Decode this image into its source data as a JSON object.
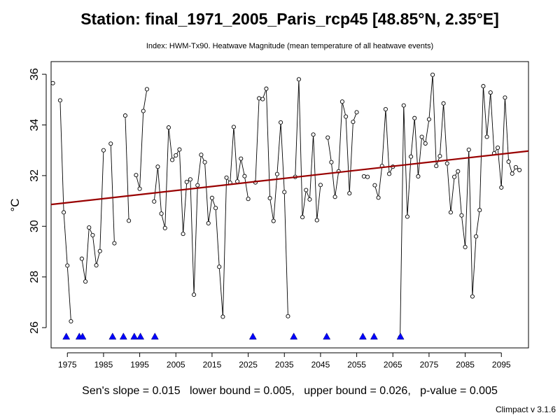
{
  "chart_data": {
    "type": "line",
    "title": "Station: final_1971_2005_Paris_rcp45 [48.85°N, 2.35°E]",
    "subtitle": "Index: HWM-Tx90. Heatwave Magnitude (mean temperature of all heatwave events)",
    "ylabel": "°C",
    "xlabel": "",
    "xlim": [
      1970.5,
      2102.5
    ],
    "ylim": [
      25.2,
      36.5
    ],
    "xticks": [
      1975,
      1985,
      1995,
      2005,
      2015,
      2025,
      2035,
      2045,
      2055,
      2065,
      2075,
      2085,
      2095
    ],
    "yticks": [
      26,
      28,
      30,
      32,
      34,
      36
    ],
    "grid": false,
    "legend": "none",
    "series": [
      {
        "values": [
          [
            1971,
            35.65
          ],
          [
            1972,
            null
          ],
          [
            1973,
            34.97
          ],
          [
            1974,
            30.55
          ],
          [
            1975,
            28.45
          ],
          [
            1976,
            26.25
          ],
          [
            1977,
            null
          ],
          [
            1978,
            null
          ],
          [
            1979,
            28.72
          ],
          [
            1980,
            27.82
          ],
          [
            1981,
            29.95
          ],
          [
            1982,
            29.65
          ],
          [
            1983,
            28.46
          ],
          [
            1984,
            29.02
          ],
          [
            1985,
            33.0
          ],
          [
            1986,
            null
          ],
          [
            1987,
            33.26
          ],
          [
            1988,
            29.33
          ],
          [
            1989,
            null
          ],
          [
            1990,
            null
          ],
          [
            1991,
            34.37
          ],
          [
            1992,
            30.22
          ],
          [
            1993,
            null
          ],
          [
            1994,
            32.02
          ],
          [
            1995,
            31.48
          ],
          [
            1996,
            34.55
          ],
          [
            1997,
            35.41
          ],
          [
            1998,
            null
          ],
          [
            1999,
            30.98
          ],
          [
            2000,
            32.35
          ],
          [
            2001,
            30.5
          ],
          [
            2002,
            29.93
          ],
          [
            2003,
            33.9
          ],
          [
            2004,
            32.62
          ],
          [
            2005,
            32.8
          ],
          [
            2006,
            33.03
          ],
          [
            2007,
            29.7
          ],
          [
            2008,
            31.75
          ],
          [
            2009,
            31.85
          ],
          [
            2010,
            27.3
          ],
          [
            2011,
            31.62
          ],
          [
            2012,
            32.82
          ],
          [
            2013,
            32.53
          ],
          [
            2014,
            30.12
          ],
          [
            2015,
            31.12
          ],
          [
            2016,
            30.72
          ],
          [
            2017,
            28.4
          ],
          [
            2018,
            26.43
          ],
          [
            2019,
            31.92
          ],
          [
            2020,
            31.72
          ],
          [
            2021,
            33.92
          ],
          [
            2022,
            31.77
          ],
          [
            2023,
            32.67
          ],
          [
            2024,
            31.98
          ],
          [
            2025,
            31.08
          ],
          [
            2026,
            null
          ],
          [
            2027,
            31.73
          ],
          [
            2028,
            35.05
          ],
          [
            2029,
            35.02
          ],
          [
            2030,
            35.43
          ],
          [
            2031,
            31.11
          ],
          [
            2032,
            30.21
          ],
          [
            2033,
            32.06
          ],
          [
            2034,
            34.1
          ],
          [
            2035,
            31.35
          ],
          [
            2036,
            26.45
          ],
          [
            2037,
            null
          ],
          [
            2038,
            31.95
          ],
          [
            2039,
            35.8
          ],
          [
            2040,
            30.36
          ],
          [
            2041,
            31.43
          ],
          [
            2042,
            31.06
          ],
          [
            2043,
            33.62
          ],
          [
            2044,
            30.24
          ],
          [
            2045,
            31.63
          ],
          [
            2046,
            null
          ],
          [
            2047,
            33.5
          ],
          [
            2048,
            32.53
          ],
          [
            2049,
            31.16
          ],
          [
            2050,
            32.17
          ],
          [
            2051,
            34.92
          ],
          [
            2052,
            34.33
          ],
          [
            2053,
            31.3
          ],
          [
            2054,
            34.12
          ],
          [
            2055,
            34.5
          ],
          [
            2056,
            null
          ],
          [
            2057,
            31.97
          ],
          [
            2058,
            31.95
          ],
          [
            2059,
            null
          ],
          [
            2060,
            31.62
          ],
          [
            2061,
            31.13
          ],
          [
            2062,
            32.38
          ],
          [
            2063,
            34.62
          ],
          [
            2064,
            32.07
          ],
          [
            2065,
            32.35
          ],
          [
            2066,
            null
          ],
          [
            2067,
            25.62
          ],
          [
            2068,
            34.77
          ],
          [
            2069,
            30.38
          ],
          [
            2070,
            32.75
          ],
          [
            2071,
            34.27
          ],
          [
            2072,
            31.97
          ],
          [
            2073,
            33.53
          ],
          [
            2074,
            33.27
          ],
          [
            2075,
            34.22
          ],
          [
            2076,
            35.98
          ],
          [
            2077,
            32.38
          ],
          [
            2078,
            32.77
          ],
          [
            2079,
            34.85
          ],
          [
            2080,
            32.48
          ],
          [
            2081,
            30.55
          ],
          [
            2082,
            31.95
          ],
          [
            2083,
            32.17
          ],
          [
            2084,
            30.43
          ],
          [
            2085,
            29.18
          ],
          [
            2086,
            33.02
          ],
          [
            2087,
            27.23
          ],
          [
            2088,
            29.6
          ],
          [
            2089,
            30.64
          ],
          [
            2090,
            35.53
          ],
          [
            2091,
            33.53
          ],
          [
            2092,
            35.28
          ],
          [
            2093,
            32.88
          ],
          [
            2094,
            33.1
          ],
          [
            2095,
            31.53
          ],
          [
            2096,
            35.08
          ],
          [
            2097,
            32.55
          ],
          [
            2098,
            32.08
          ],
          [
            2099,
            32.33
          ],
          [
            2100,
            32.22
          ]
        ]
      }
    ],
    "missing_marker_years": [
      1974.7,
      1978.3,
      1979.2,
      1987.5,
      1990.5,
      1993.5,
      1995.2,
      1999.2,
      2026.3,
      2037.6,
      2046.7,
      2056.7,
      2059.8,
      2067.1
    ],
    "missing_marker_y": 25.65,
    "trend": {
      "start": [
        1970.5,
        30.86
      ],
      "end": [
        2102.5,
        32.97
      ],
      "color": "#990000"
    },
    "colors": {
      "points": "#000000",
      "line": "#000000",
      "markers": "#0000ff"
    }
  },
  "footer": {
    "stats": "Sen's slope = 0.015   lower bound = 0.005,   upper bound = 0.026,   p-value = 0.005",
    "credit": "Climpact v 3.1.6"
  }
}
